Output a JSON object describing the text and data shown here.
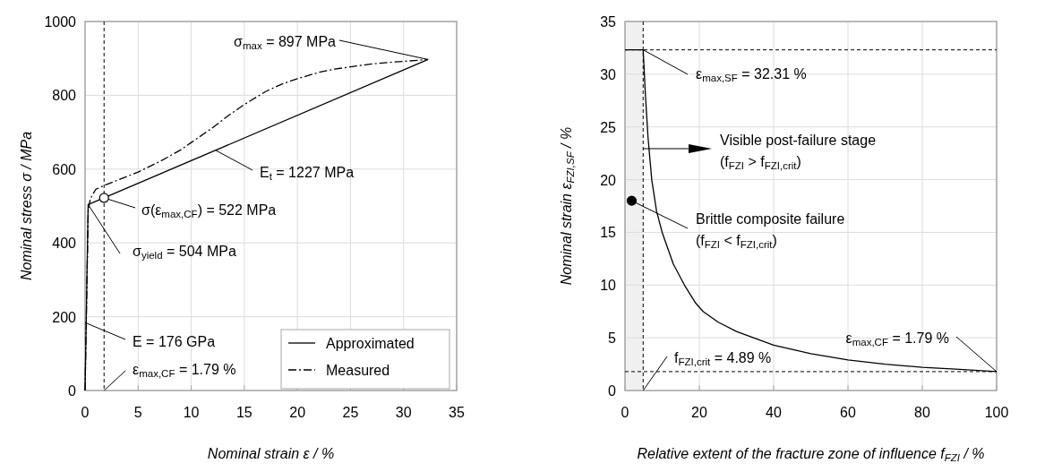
{
  "chart_data": [
    {
      "type": "line",
      "xlabel": "Nominal strain ε / %",
      "ylabel": "Nominal stress σ / MPa",
      "xlim": [
        0,
        35
      ],
      "xticks": [
        0,
        5,
        10,
        15,
        20,
        25,
        30,
        35
      ],
      "ylim": [
        0,
        1000
      ],
      "yticks": [
        0,
        200,
        400,
        600,
        800,
        1000
      ],
      "grid": true,
      "legend": "bottom right",
      "series": [
        {
          "name": "Approximated",
          "color": "#000000",
          "line_style": "solid",
          "x": [
            0,
            0.29,
            1.79,
            32.31
          ],
          "values": [
            0,
            504,
            522,
            897
          ]
        },
        {
          "name": "Measured",
          "color": "#000000",
          "line_style": "dashdot",
          "x": [
            0,
            0.3,
            0.5,
            1,
            2,
            3.5,
            5,
            7,
            9,
            10,
            12,
            13.5,
            15,
            17,
            18.5,
            20,
            22,
            23.5,
            25,
            27,
            29,
            31,
            32.31
          ],
          "values": [
            0,
            490,
            520,
            545,
            558,
            575,
            592,
            620,
            652,
            672,
            712,
            745,
            775,
            810,
            830,
            845,
            862,
            871,
            877,
            885,
            890,
            894,
            897
          ]
        },
        {
          "type": "scatter",
          "color": "#ffffff",
          "marker": "circle",
          "x": [
            1.79
          ],
          "values": [
            522
          ]
        }
      ],
      "ref_lines": [
        {
          "axis": "x",
          "value": 1.79,
          "line_style": "dashed",
          "color": "#000000"
        }
      ],
      "annotations": [
        {
          "text": "σ$_{max}$ = 897 MPa",
          "x": 32.31,
          "y": 897
        },
        {
          "text": "E$_{t}$ = 1227 MPa",
          "x": 12.3,
          "y": 651
        },
        {
          "text": "σ(ε$_{max,CF}$) = 522 MPa",
          "x": 1.79,
          "y": 522
        },
        {
          "text": "σ$_{yield}$ = 504 MPa",
          "x": 0.29,
          "y": 504
        },
        {
          "text": "E = 176 GPa",
          "x": 0,
          "y": 184
        },
        {
          "text": "ε$_{max,CF}$ = 1.79 %",
          "x": 1.79,
          "y": 0
        }
      ]
    },
    {
      "type": "line",
      "xlabel": "Relative extent of the fracture zone of influence f$_{FZI}$ / %",
      "ylabel": "Nominal strain ε$_{FZI,SF}$ / %",
      "xlim": [
        0,
        100
      ],
      "xticks": [
        0,
        20,
        40,
        60,
        80,
        100
      ],
      "ylim": [
        0,
        35
      ],
      "yticks": [
        0,
        5,
        10,
        15,
        20,
        25,
        30,
        35
      ],
      "grid": true,
      "series": [
        {
          "color": "#000000",
          "line_style": "solid",
          "x": [
            0,
            4.89,
            5.5,
            6.2,
            7.2,
            8.5,
            10,
            13,
            16,
            19,
            21,
            25,
            30,
            40,
            50,
            60,
            70,
            80,
            90,
            100
          ],
          "values": [
            32.31,
            32.31,
            28,
            24,
            20,
            17,
            15,
            12,
            10,
            8.3,
            7.5,
            6.5,
            5.6,
            4.3,
            3.5,
            2.9,
            2.5,
            2.2,
            2.0,
            1.79
          ]
        },
        {
          "type": "scatter",
          "color": "#000000",
          "marker": "circle",
          "x": [
            1.8
          ],
          "values": [
            18
          ]
        }
      ],
      "bands": [
        {
          "axis": "x",
          "from": 0,
          "to": 4.89,
          "color": "#f0f0f0"
        }
      ],
      "ref_lines": [
        {
          "axis": "y",
          "value": 32.31,
          "line_style": "dashed",
          "color": "#000000"
        },
        {
          "axis": "x",
          "value": 4.89,
          "line_style": "dashed",
          "color": "#000000"
        },
        {
          "axis": "y",
          "value": 1.79,
          "line_style": "dashed",
          "color": "#000000"
        }
      ],
      "annotations": [
        {
          "text": "ε$_{max,SF}$ = 32.31 %",
          "x": 4.89,
          "y": 32.31
        },
        "Visible post-failure stage\n(f$_{FZI}$ > f$_{FZI,crit}$)",
        {
          "text": "Brittle composite failure\n(f$_{FZI}$ < f$_{FZI,crit}$)",
          "x": 1.8,
          "y": 18
        },
        {
          "text": "ε$_{max,CF}$ = 1.79 %",
          "x": 100,
          "y": 1.79
        },
        {
          "text": "f$_{FZI,crit}$ = 4.89 %",
          "x": 4.89,
          "y": 0
        }
      ]
    }
  ]
}
